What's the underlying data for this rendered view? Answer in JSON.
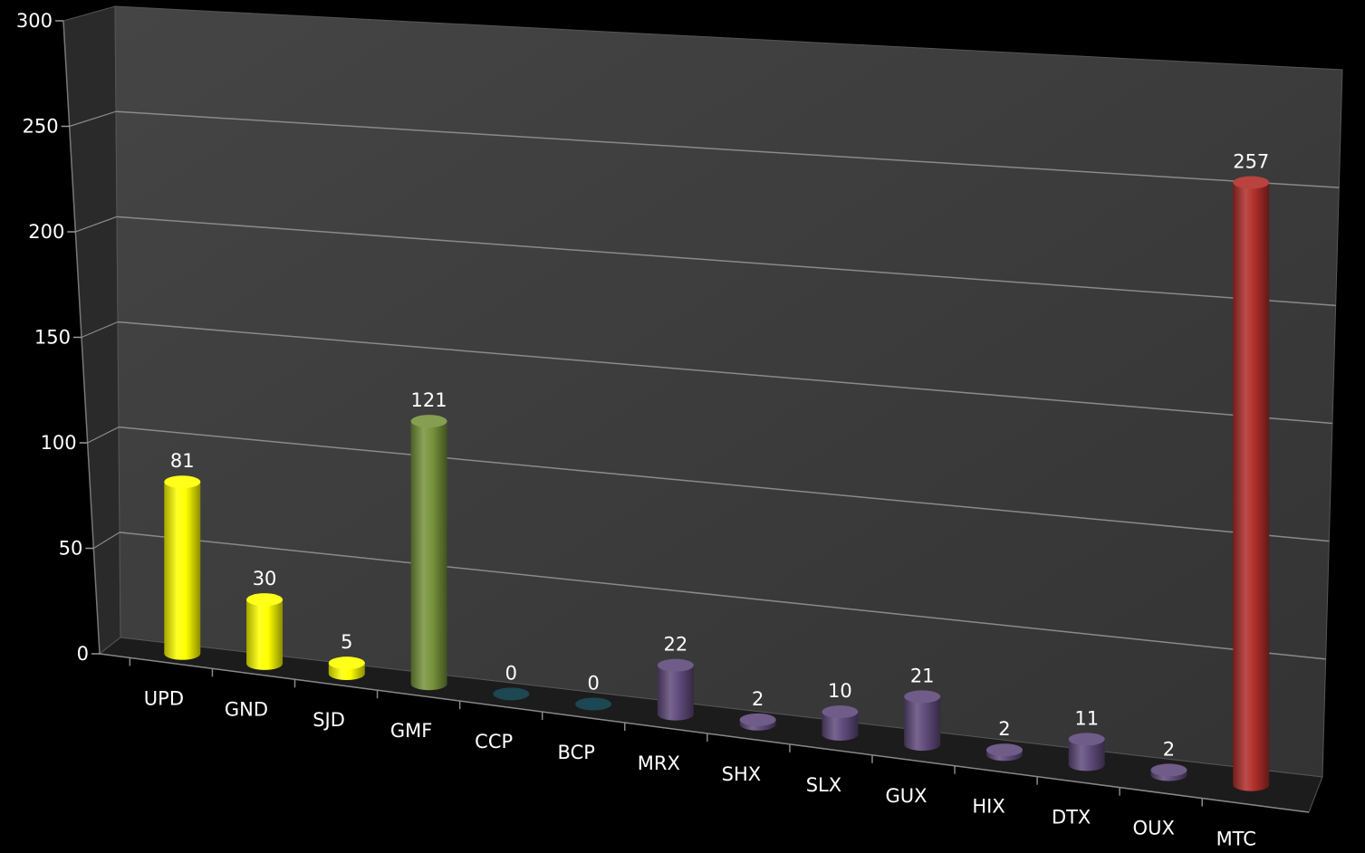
{
  "chart_data": {
    "type": "bar",
    "categories": [
      "UPD",
      "GND",
      "SJD",
      "GMF",
      "CCP",
      "BCP",
      "MRX",
      "SHX",
      "SLX",
      "GUX",
      "HIX",
      "DTX",
      "OUX",
      "MTC"
    ],
    "values": [
      81,
      30,
      5,
      121,
      0,
      0,
      22,
      2,
      10,
      21,
      2,
      11,
      2,
      257
    ],
    "group": [
      "yellow",
      "yellow",
      "yellow",
      "green",
      "teal",
      "teal",
      "purple",
      "purple",
      "purple",
      "purple",
      "purple",
      "purple",
      "purple",
      "red"
    ],
    "ylim": [
      0,
      300
    ],
    "yticks": [
      0,
      50,
      100,
      150,
      200,
      250,
      300
    ],
    "grid": true,
    "colors": {
      "yellow": "#ffff00",
      "green": "#77933c",
      "teal": "#1f4f5c",
      "purple": "#604a7b",
      "red": "#b02e2a",
      "wall": "#3b3b3b",
      "floor": "#202020"
    }
  }
}
